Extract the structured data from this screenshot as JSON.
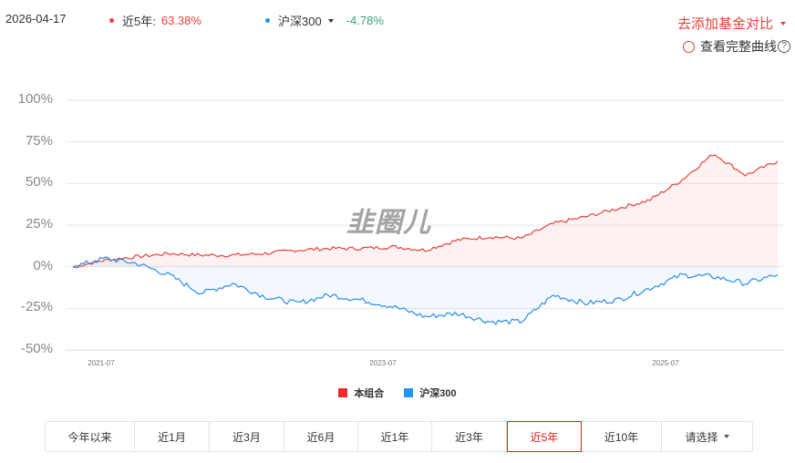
{
  "header": {
    "date": "2026-04-17",
    "series1": {
      "label": "近5年:",
      "value": "63.38%",
      "dot_color": "#e8413c"
    },
    "series2": {
      "label": "沪深300",
      "value": "-4.78%",
      "dot_color": "#2d8de8"
    },
    "compare_label": "去添加基金对比",
    "full_curve_label": "查看完整曲线",
    "help_glyph": "?"
  },
  "watermark": "韭圈儿",
  "legend": [
    {
      "label": "本组合",
      "color": "#ee2a2f"
    },
    {
      "label": "沪深300",
      "color": "#2196f3"
    }
  ],
  "tabs": [
    {
      "label": "今年以来",
      "active": false
    },
    {
      "label": "近1月",
      "active": false
    },
    {
      "label": "近3月",
      "active": false
    },
    {
      "label": "近6月",
      "active": false
    },
    {
      "label": "近1年",
      "active": false
    },
    {
      "label": "近3年",
      "active": false
    },
    {
      "label": "近5年",
      "active": true
    },
    {
      "label": "近10年",
      "active": false
    },
    {
      "label": "请选择",
      "active": false,
      "dropdown": true
    }
  ],
  "chart_data": {
    "type": "area",
    "title": "",
    "xlabel": "",
    "ylabel": "",
    "ylim": [
      -50,
      100
    ],
    "y_ticks": [
      "100%",
      "75%",
      "50%",
      "25%",
      "0%",
      "-25%",
      "-50%"
    ],
    "x_ticks": [
      "2021-07",
      "2023-07",
      "2025-07"
    ],
    "grid": true,
    "legend_position": "bottom",
    "x": [
      "2021-04",
      "2021-07",
      "2021-10",
      "2022-01",
      "2022-04",
      "2022-07",
      "2022-10",
      "2023-01",
      "2023-04",
      "2023-07",
      "2023-10",
      "2024-01",
      "2024-04",
      "2024-07",
      "2024-10",
      "2025-01",
      "2025-04",
      "2025-07",
      "2025-10",
      "2026-01",
      "2026-02",
      "2026-03",
      "2026-04"
    ],
    "series": [
      {
        "name": "本组合",
        "color": "#e8413c",
        "values": [
          0,
          4,
          6,
          8,
          7,
          7,
          8,
          10,
          11,
          11,
          12,
          10,
          16,
          18,
          17,
          26,
          30,
          35,
          40,
          52,
          68,
          55,
          63.38
        ]
      },
      {
        "name": "沪深300",
        "color": "#2d8de8",
        "values": [
          0,
          5,
          2,
          -5,
          -16,
          -10,
          -18,
          -22,
          -17,
          -20,
          -24,
          -30,
          -28,
          -33,
          -33,
          -17,
          -22,
          -20,
          -13,
          -5,
          -6,
          -10,
          -4.78
        ]
      }
    ]
  }
}
